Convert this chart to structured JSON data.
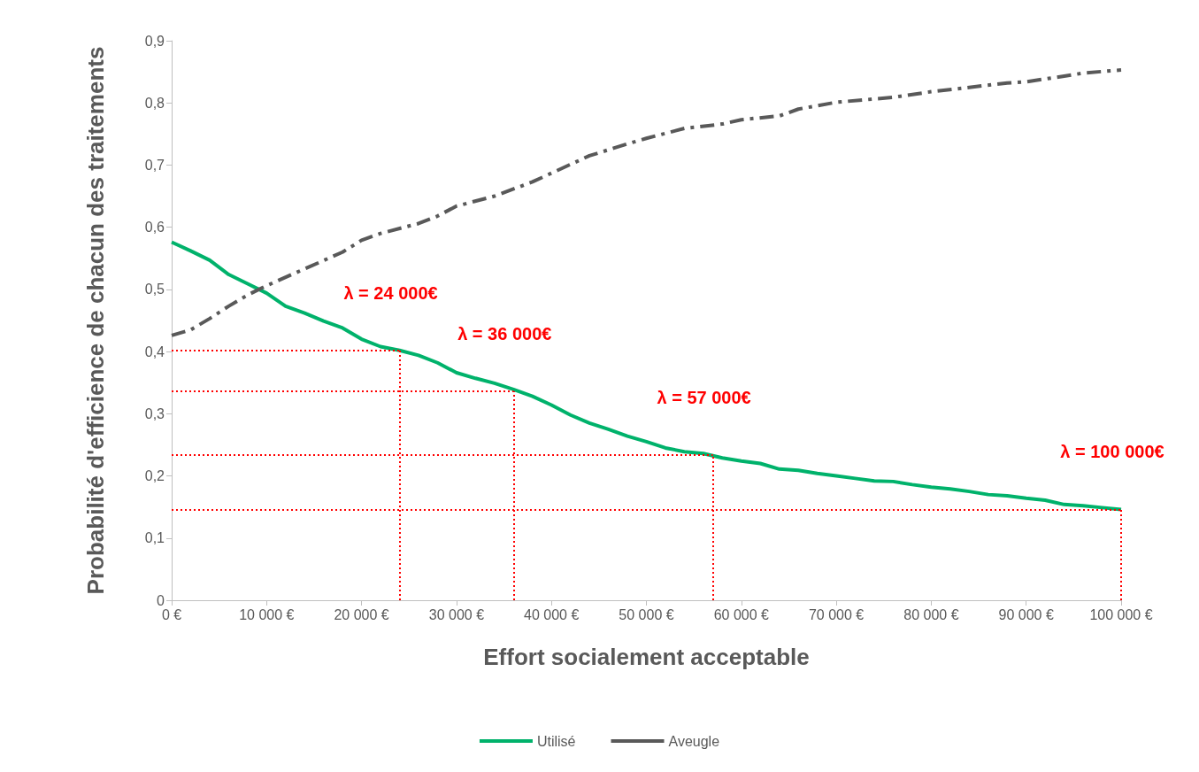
{
  "chart_data": {
    "type": "line",
    "xlabel": "Effort socialement acceptable",
    "ylabel": "Probabilité d'efficience de chacun des traitements",
    "xlim": [
      0,
      100000
    ],
    "ylim": [
      0,
      0.9
    ],
    "xticks": [
      {
        "value": 0,
        "label": "0 €"
      },
      {
        "value": 10000,
        "label": "10 000 €"
      },
      {
        "value": 20000,
        "label": "20 000 €"
      },
      {
        "value": 30000,
        "label": "30 000 €"
      },
      {
        "value": 40000,
        "label": "40 000 €"
      },
      {
        "value": 50000,
        "label": "50 000 €"
      },
      {
        "value": 60000,
        "label": "60 000 €"
      },
      {
        "value": 70000,
        "label": "70 000 €"
      },
      {
        "value": 80000,
        "label": "80 000 €"
      },
      {
        "value": 90000,
        "label": "90 000 €"
      },
      {
        "value": 100000,
        "label": "100 000 €"
      }
    ],
    "yticks": [
      0,
      {
        "value": 0.1,
        "label": "0,1"
      },
      {
        "value": 0.2,
        "label": "0,2"
      },
      {
        "value": 0.3,
        "label": "0,3"
      },
      {
        "value": 0.4,
        "label": "0,4"
      },
      {
        "value": 0.5,
        "label": "0,5"
      },
      {
        "value": 0.6,
        "label": "0,6"
      },
      {
        "value": 0.7,
        "label": "0,7"
      },
      {
        "value": 0.8,
        "label": "0,8"
      },
      {
        "value": 0.9,
        "label": "0,9"
      }
    ],
    "grid": false,
    "legend": "bottom",
    "marker": "none",
    "series": [
      {
        "name": "Utilisé",
        "color": "#00b26b",
        "line_style": "solid",
        "x": [
          0,
          2000,
          4000,
          6000,
          8000,
          10000,
          12000,
          14000,
          16000,
          18000,
          20000,
          22000,
          24000,
          26000,
          28000,
          30000,
          32000,
          34000,
          36000,
          38000,
          40000,
          42000,
          44000,
          46000,
          48000,
          50000,
          52000,
          54000,
          56000,
          58000,
          60000,
          62000,
          64000,
          66000,
          68000,
          70000,
          72000,
          74000,
          76000,
          78000,
          80000,
          82000,
          84000,
          86000,
          88000,
          90000,
          92000,
          94000,
          96000,
          98000,
          100000
        ],
        "values": [
          0.576,
          0.562,
          0.547,
          0.524,
          0.509,
          0.494,
          0.473,
          0.462,
          0.449,
          0.438,
          0.42,
          0.408,
          0.402,
          0.394,
          0.382,
          0.366,
          0.357,
          0.349,
          0.339,
          0.328,
          0.314,
          0.298,
          0.285,
          0.275,
          0.264,
          0.255,
          0.245,
          0.239,
          0.236,
          0.229,
          0.224,
          0.22,
          0.211,
          0.209,
          0.204,
          0.2,
          0.196,
          0.192,
          0.191,
          0.186,
          0.182,
          0.179,
          0.175,
          0.17,
          0.168,
          0.164,
          0.161,
          0.154,
          0.152,
          0.149,
          0.146
        ]
      },
      {
        "name": "Aveugle",
        "color": "#595959",
        "line_style": "dashed",
        "x": [
          0,
          2000,
          4000,
          6000,
          8000,
          10000,
          14000,
          18000,
          20000,
          22000,
          26000,
          28000,
          30000,
          34000,
          38000,
          40000,
          44000,
          48000,
          50000,
          54000,
          58000,
          60000,
          64000,
          66000,
          70000,
          76000,
          80000,
          84000,
          88000,
          90000,
          94000,
          96000,
          100000
        ],
        "values": [
          0.426,
          0.435,
          0.453,
          0.473,
          0.491,
          0.506,
          0.533,
          0.56,
          0.579,
          0.59,
          0.606,
          0.618,
          0.634,
          0.65,
          0.673,
          0.687,
          0.715,
          0.734,
          0.743,
          0.759,
          0.766,
          0.773,
          0.779,
          0.79,
          0.801,
          0.809,
          0.818,
          0.825,
          0.832,
          0.834,
          0.843,
          0.848,
          0.853
        ]
      }
    ],
    "ref_lines": [
      {
        "axis": "x",
        "value": 24000,
        "label": "λ = 24 000€",
        "color": "#ff0000",
        "line_style": "dotted"
      },
      {
        "axis": "x",
        "value": 36000,
        "label": "λ = 36 000€",
        "color": "#ff0000",
        "line_style": "dotted"
      },
      {
        "axis": "x",
        "value": 57000,
        "label": "λ = 57 000€",
        "color": "#ff0000",
        "line_style": "dotted"
      },
      {
        "axis": "x",
        "value": 100000,
        "label": "λ = 100 000€",
        "color": "#ff0000",
        "line_style": "dotted"
      },
      {
        "axis": "y",
        "value": 0.402,
        "color": "#ff0000",
        "line_style": "dotted"
      },
      {
        "axis": "y",
        "value": 0.336,
        "color": "#ff0000",
        "line_style": "dotted"
      },
      {
        "axis": "y",
        "value": 0.234,
        "color": "#ff0000",
        "line_style": "dotted"
      },
      {
        "axis": "y",
        "value": 0.146,
        "color": "#ff0000",
        "line_style": "dotted"
      }
    ]
  }
}
